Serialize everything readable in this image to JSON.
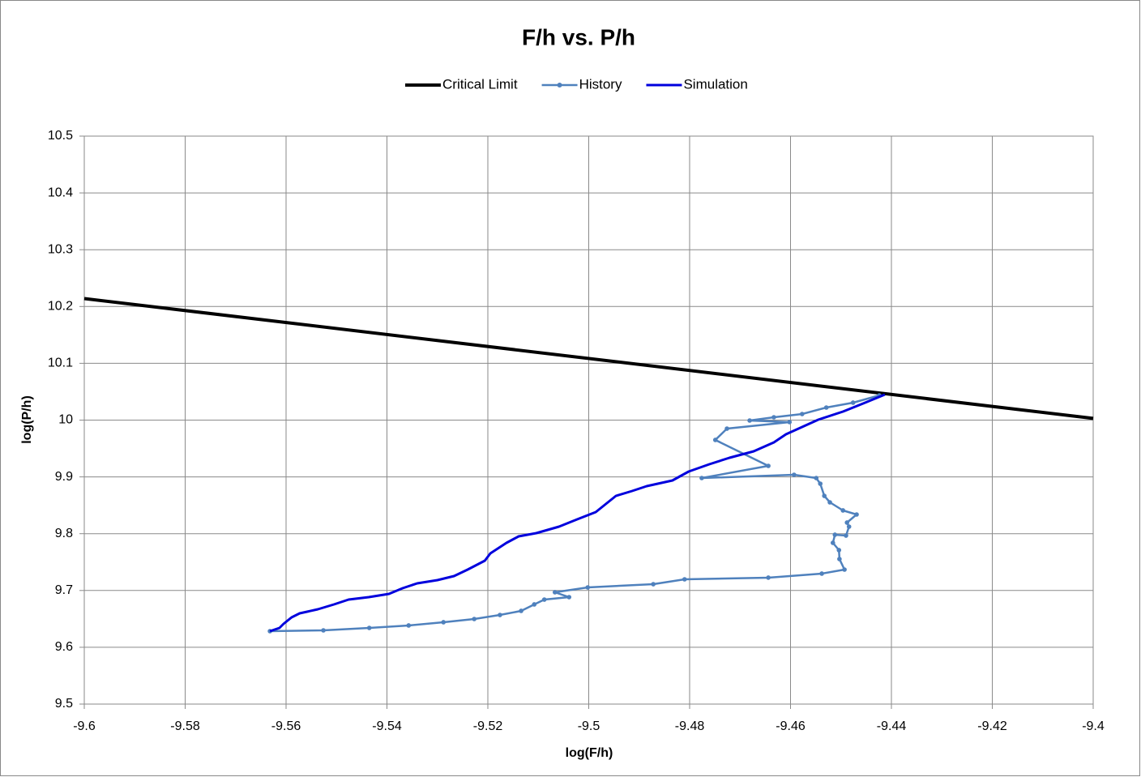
{
  "chart_data": {
    "type": "line",
    "title": "F/h vs. P/h",
    "x_label": "log(F/h)",
    "y_label": "log(P/h)",
    "xlim": [
      -9.6,
      -9.4
    ],
    "ylim": [
      9.5,
      10.5
    ],
    "xticks": [
      -9.6,
      -9.58,
      -9.56,
      -9.54,
      -9.52,
      -9.5,
      -9.48,
      -9.46,
      -9.44,
      -9.42,
      -9.4
    ],
    "yticks": [
      9.5,
      9.6,
      9.7,
      9.8,
      9.9,
      10,
      10.1,
      10.2,
      10.3,
      10.4,
      10.5
    ],
    "grid": true,
    "legend": "top",
    "series": [
      {
        "name": "Critical Limit",
        "color": "#000000",
        "markers": false,
        "width": 4,
        "x": [
          -9.6,
          -9.4
        ],
        "values": [
          10.214,
          10.003
        ]
      },
      {
        "name": "History",
        "color": "#4f81bd",
        "markers": true,
        "width": 2.5,
        "x": [
          -9.5632,
          -9.5526,
          -9.5435,
          -9.5357,
          -9.5288,
          -9.5227,
          -9.5176,
          -9.5134,
          -9.5108,
          -9.5088,
          -9.5039,
          -9.5067,
          -9.5002,
          -9.4872,
          -9.481,
          -9.4644,
          -9.4538,
          -9.4493,
          -9.4503,
          -9.4504,
          -9.4516,
          -9.4512,
          -9.449,
          -9.4484,
          -9.4488,
          -9.4469,
          -9.4496,
          -9.4522,
          -9.4533,
          -9.4541,
          -9.4549,
          -9.4593,
          -9.4776,
          -9.4644,
          -9.4749,
          -9.4726,
          -9.4602,
          -9.4681,
          -9.4633,
          -9.4577,
          -9.4529,
          -9.4476,
          -9.4424
        ],
        "values": [
          9.6284,
          9.6298,
          9.6341,
          9.6384,
          9.6441,
          9.6498,
          9.6569,
          9.6641,
          9.6755,
          9.684,
          9.6883,
          9.6969,
          9.7054,
          9.7111,
          9.7197,
          9.7226,
          9.7297,
          9.7368,
          9.7554,
          9.7711,
          9.7839,
          9.7982,
          9.7967,
          9.8124,
          9.8196,
          9.8338,
          9.841,
          9.8552,
          9.8666,
          9.888,
          9.898,
          9.9037,
          9.898,
          9.9194,
          9.9651,
          9.985,
          9.9965,
          9.9993,
          10.005,
          10.0107,
          10.0221,
          10.0307,
          10.0435
        ]
      },
      {
        "name": "Simulation",
        "color": "#0000dd",
        "markers": false,
        "width": 3,
        "x": [
          -9.5632,
          -9.5613,
          -9.5605,
          -9.5589,
          -9.5573,
          -9.5537,
          -9.5505,
          -9.5476,
          -9.5436,
          -9.5396,
          -9.5369,
          -9.534,
          -9.53,
          -9.5267,
          -9.524,
          -9.5206,
          -9.5195,
          -9.5163,
          -9.5139,
          -9.5104,
          -9.5059,
          -9.5023,
          -9.4986,
          -9.4946,
          -9.4914,
          -9.4885,
          -9.4834,
          -9.4802,
          -9.4761,
          -9.4721,
          -9.4673,
          -9.4633,
          -9.4609,
          -9.4577,
          -9.4545,
          -9.4496,
          -9.4456,
          -9.4413
        ],
        "values": [
          9.6284,
          9.6341,
          9.6412,
          9.6527,
          9.6598,
          9.6669,
          9.6755,
          9.684,
          9.6883,
          9.694,
          9.704,
          9.7126,
          9.7183,
          9.7254,
          9.7368,
          9.7525,
          9.7654,
          9.7839,
          9.7953,
          9.801,
          9.8124,
          9.8253,
          9.8381,
          9.8666,
          9.8752,
          9.8838,
          9.8937,
          9.9094,
          9.9223,
          9.9337,
          9.9451,
          9.9608,
          9.975,
          9.9879,
          10.0007,
          10.015,
          10.0293,
          10.045
        ]
      }
    ]
  }
}
